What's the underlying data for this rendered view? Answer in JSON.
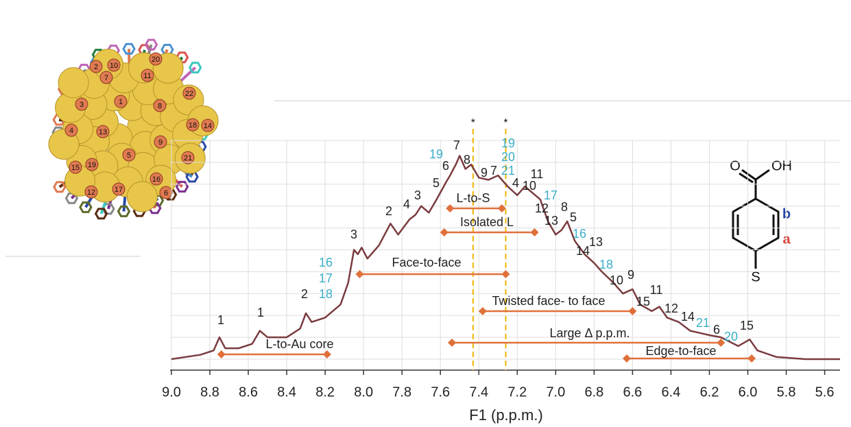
{
  "chart_data": {
    "type": "line",
    "x_label": "F1 (p.p.m.)",
    "xlim": [
      9.0,
      5.52
    ],
    "xticks": [
      {
        "value": 9.0,
        "label": "9.0"
      },
      {
        "value": 8.8,
        "label": "8.8"
      },
      {
        "value": 8.6,
        "label": "8.6"
      },
      {
        "value": 8.4,
        "label": "8.4"
      },
      {
        "value": 8.2,
        "label": "8.2"
      },
      {
        "value": 8.0,
        "label": "8.0"
      },
      {
        "value": 7.8,
        "label": "7.8"
      },
      {
        "value": 7.6,
        "label": "7.6"
      },
      {
        "value": 7.4,
        "label": "7.4"
      },
      {
        "value": 7.2,
        "label": "7.2"
      },
      {
        "value": 7.0,
        "label": "7.0"
      },
      {
        "value": 6.8,
        "label": "6.8"
      },
      {
        "value": 6.6,
        "label": "6.6"
      },
      {
        "value": 6.4,
        "label": "6.4"
      },
      {
        "value": 6.2,
        "label": "6.2"
      },
      {
        "value": 6.0,
        "label": "6.0"
      },
      {
        "value": 5.8,
        "label": "5.8"
      },
      {
        "value": 5.6,
        "label": "5.6"
      }
    ],
    "ylim": [
      -5,
      100
    ],
    "yticks": [
      0,
      10,
      20,
      30,
      40,
      50,
      60,
      70,
      80,
      90,
      100
    ],
    "grid": true,
    "color": "#7a3b3f",
    "x": [
      9.0,
      8.85,
      8.78,
      8.75,
      8.72,
      8.65,
      8.58,
      8.54,
      8.5,
      8.4,
      8.33,
      8.3,
      8.27,
      8.2,
      8.12,
      8.08,
      8.05,
      8.03,
      8.01,
      7.98,
      7.92,
      7.86,
      7.82,
      7.76,
      7.73,
      7.7,
      7.66,
      7.62,
      7.57,
      7.55,
      7.52,
      7.5,
      7.47,
      7.44,
      7.4,
      7.35,
      7.3,
      7.25,
      7.2,
      7.16,
      7.12,
      7.08,
      7.04,
      7.0,
      6.97,
      6.94,
      6.9,
      6.85,
      6.8,
      6.76,
      6.7,
      6.65,
      6.6,
      6.56,
      6.5,
      6.46,
      6.42,
      6.36,
      6.3,
      6.2,
      6.14,
      6.05,
      5.99,
      5.95,
      5.85,
      5.7,
      5.52
    ],
    "values": [
      0,
      2,
      4,
      10,
      5,
      5,
      7,
      13,
      10,
      10,
      14,
      21,
      17,
      19,
      25,
      35,
      50,
      48,
      51,
      46,
      52,
      62,
      57,
      64,
      66,
      70,
      67,
      73,
      81,
      84,
      89,
      93,
      87,
      89,
      83,
      82,
      84,
      79,
      75,
      79,
      76,
      73,
      63,
      57,
      59,
      63,
      54,
      48,
      44,
      40,
      35,
      30,
      32,
      25,
      22,
      24,
      19,
      17,
      13,
      11,
      10,
      6,
      9,
      4,
      1,
      0,
      0
    ],
    "reference_lines": [
      7.43,
      7.26
    ],
    "reference_marks": [
      "*",
      "*"
    ],
    "ranges": [
      {
        "label": "L-to-Au core",
        "from": 8.74,
        "to": 8.19
      },
      {
        "label": "Face-to-face",
        "from": 8.02,
        "to": 7.26
      },
      {
        "label": "L-to-S",
        "from": 7.55,
        "to": 7.28
      },
      {
        "label": "Isolated L",
        "from": 7.58,
        "to": 7.11
      },
      {
        "label": "Twisted face- to face",
        "from": 7.38,
        "to": 6.6
      },
      {
        "label": "Large Δ p.p.m.",
        "from": 7.54,
        "to": 6.14
      },
      {
        "label": "Edge-to-face",
        "from": 6.63,
        "to": 5.98
      }
    ],
    "peak_labels": [
      {
        "text": "1",
        "color": "#222"
      },
      {
        "text": "1",
        "color": "#222"
      },
      {
        "text": "2",
        "color": "#222"
      },
      {
        "text": "3",
        "color": "#222"
      },
      {
        "text": "2",
        "color": "#222"
      },
      {
        "text": "4",
        "color": "#222"
      },
      {
        "text": "3",
        "color": "#222"
      },
      {
        "text": "5",
        "color": "#222"
      },
      {
        "text": "6",
        "color": "#222"
      },
      {
        "text": "7",
        "color": "#222"
      },
      {
        "text": "8",
        "color": "#222"
      },
      {
        "text": "9",
        "color": "#222"
      },
      {
        "text": "7",
        "color": "#222"
      },
      {
        "text": "4",
        "color": "#222"
      },
      {
        "text": "10",
        "color": "#222"
      },
      {
        "text": "11",
        "color": "#222"
      },
      {
        "text": "12",
        "color": "#222"
      },
      {
        "text": "13",
        "color": "#222"
      },
      {
        "text": "8",
        "color": "#222"
      },
      {
        "text": "5",
        "color": "#222"
      },
      {
        "text": "13",
        "color": "#222"
      },
      {
        "text": "14",
        "color": "#222"
      },
      {
        "text": "10",
        "color": "#222"
      },
      {
        "text": "9",
        "color": "#222"
      },
      {
        "text": "15",
        "color": "#222"
      },
      {
        "text": "11",
        "color": "#222"
      },
      {
        "text": "12",
        "color": "#222"
      },
      {
        "text": "14",
        "color": "#222"
      },
      {
        "text": "6",
        "color": "#222"
      },
      {
        "text": "15",
        "color": "#222"
      },
      {
        "text": "16",
        "color": "#3aaec8"
      },
      {
        "text": "17",
        "color": "#3aaec8"
      },
      {
        "text": "18",
        "color": "#3aaec8"
      },
      {
        "text": "19",
        "color": "#3aaec8"
      },
      {
        "text": "19",
        "color": "#3aaec8"
      },
      {
        "text": "20",
        "color": "#3aaec8"
      },
      {
        "text": "21",
        "color": "#3aaec8"
      },
      {
        "text": "17",
        "color": "#3aaec8"
      },
      {
        "text": "16",
        "color": "#3aaec8"
      },
      {
        "text": "18",
        "color": "#3aaec8"
      },
      {
        "text": "21",
        "color": "#3aaec8"
      },
      {
        "text": "20",
        "color": "#3aaec8"
      }
    ],
    "molecule": {
      "carbonyl_o": "O",
      "hydroxyl": "OH",
      "sulfur": "S",
      "proton_b": "b",
      "proton_a": "a"
    },
    "cluster_labels": [
      "2",
      "10",
      "20",
      "7",
      "11",
      "22",
      "1",
      "8",
      "3",
      "18",
      "14",
      "13",
      "9",
      "4",
      "5",
      "21",
      "15",
      "19",
      "16",
      "17",
      "6",
      "12"
    ]
  }
}
